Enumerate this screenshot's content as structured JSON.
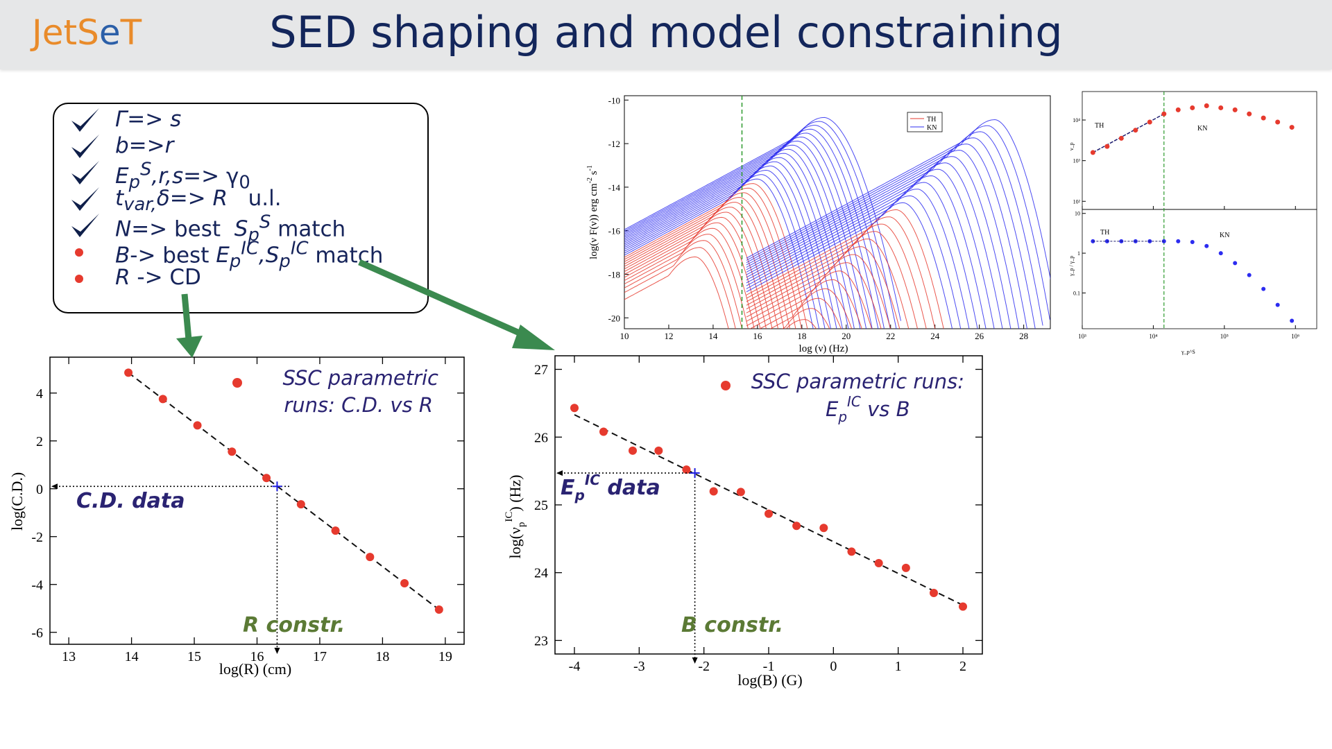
{
  "header": {
    "logo_part1": "Jet",
    "logo_part2": "S",
    "logo_part3": "e",
    "logo_part4": "T",
    "title": "SED shaping and model constraining"
  },
  "checklist": [
    {
      "kind": "check",
      "html": "<span class='it'>Γ=&gt; s</span>"
    },
    {
      "kind": "check",
      "html": "<span class='it'>b=&gt;r</span>"
    },
    {
      "kind": "check",
      "html": "<span class='it'>E<sub>p</sub><sup>S</sup>,r,s=&gt;</span> γ<sub>0</sub>"
    },
    {
      "kind": "check",
      "html": "<span class='it'>t<sub>var,</sub>δ=&gt; R</span>&nbsp;&nbsp; u.l."
    },
    {
      "kind": "check",
      "html": "<span class='it'>N</span>=&gt; best&nbsp; <span class='it'>S<sub>p</sub><sup>S</sup></span> match"
    },
    {
      "kind": "dot",
      "html": "<span class='it'>B</span>-&gt; best <span class='it'>E<sub>p</sub><sup>IC</sup>,S<sub>p</sub><sup>IC</sup></span> match"
    },
    {
      "kind": "dot",
      "html": "<span class='it'>R</span> -&gt; CD"
    }
  ],
  "colors": {
    "title": "#13265b",
    "point": "#e63a2e",
    "sync": "#e63a2e",
    "kn": "#2c2cf0",
    "arrow": "#3b8a4f",
    "ann_blue": "#2a2372",
    "ann_green": "#5b7a35",
    "vline": "#2c9a2c"
  },
  "chart_data": [
    {
      "id": "cd_vs_r",
      "type": "scatter",
      "xlabel": "log(R)      (cm)",
      "ylabel": "log(C.D.)",
      "xlim": [
        12.7,
        19.3
      ],
      "ylim": [
        -6.5,
        5.5
      ],
      "xticks": [
        13,
        14,
        15,
        16,
        17,
        18,
        19
      ],
      "yticks": [
        -6,
        -4,
        -2,
        0,
        2,
        4
      ],
      "x": [
        13.95,
        14.5,
        15.05,
        15.6,
        16.15,
        16.7,
        17.25,
        17.8,
        18.35,
        18.9
      ],
      "y": [
        4.85,
        3.75,
        2.65,
        1.55,
        0.45,
        -0.65,
        -1.75,
        -2.85,
        -3.95,
        -5.05
      ],
      "fit": [
        [
          13.95,
          4.85
        ],
        [
          18.9,
          -5.05
        ]
      ],
      "constraint": {
        "x": 16.32,
        "y": 0.1
      },
      "legend": "SSC parametric runs: C.D. vs R",
      "legend_line1": "SSC parametric",
      "legend_line2": "runs: C.D. vs R",
      "data_label": "C.D.  data",
      "constraint_label": "R constr."
    },
    {
      "id": "ep_vs_b",
      "type": "scatter",
      "xlabel": "log(B)      (G)",
      "ylabel": "log(ν_p^IC)   (Hz)",
      "ylabel_main": "log(ν",
      "ylabel_sub": "p",
      "ylabel_sup": "IC",
      "ylabel_tail": ")   (Hz)",
      "xlim": [
        -4.3,
        2.3
      ],
      "ylim": [
        22.8,
        27.2
      ],
      "xticks": [
        -4,
        -3,
        -2,
        -1,
        0,
        1,
        2
      ],
      "yticks": [
        23,
        24,
        25,
        26,
        27
      ],
      "x": [
        -4.0,
        -3.58,
        -3.16,
        -2.74,
        -2.32,
        -1.89,
        -1.47,
        -1.05,
        -0.63,
        -0.21,
        0.21,
        0.63,
        1.05,
        1.47,
        1.89,
        2.0
      ],
      "y": [
        26.43,
        26.08,
        25.8,
        25.8,
        25.52,
        25.2,
        25.19,
        24.87,
        24.69,
        24.66,
        24.31,
        24.14,
        24.07,
        23.7,
        23.5,
        23.5
      ],
      "x_used": [
        -4.0,
        -3.55,
        -3.1,
        -2.7,
        -2.27,
        -1.85,
        -1.43,
        -1.0,
        -0.57,
        -0.15,
        0.28,
        0.7,
        1.12,
        1.55,
        2.0
      ],
      "y_used": [
        26.43,
        26.08,
        25.8,
        25.8,
        25.52,
        25.2,
        25.19,
        24.87,
        24.69,
        24.66,
        24.31,
        24.14,
        24.07,
        23.7,
        23.5
      ],
      "fit": [
        [
          -4.0,
          26.33
        ],
        [
          2.0,
          23.52
        ]
      ],
      "constraint": {
        "x": -2.14,
        "y": 25.47
      },
      "legend_line1": "SSC parametric runs:",
      "legend_line2_a": "E",
      "legend_line2_sub": "p",
      "legend_line2_sup": "IC",
      "legend_line2_b": " vs B",
      "data_label_a": "E",
      "data_label_sub": "p",
      "data_label_sup": "IC",
      "data_label_b": " data",
      "constraint_label": "B constr."
    },
    {
      "id": "sed",
      "type": "line",
      "xlabel": "log (ν)  (Hz)",
      "ylabel": "log(ν F(ν))   erg cm⁻² s⁻¹",
      "ylabel_a": "log(ν F(ν))   erg cm",
      "ylabel_sup1": "-2",
      "ylabel_b": " s",
      "ylabel_sup2": "-1",
      "xlim": [
        10,
        29.2
      ],
      "ylim": [
        -20.5,
        -9.8
      ],
      "xticks": [
        10,
        12,
        14,
        16,
        18,
        20,
        22,
        24,
        26,
        28
      ],
      "yticks": [
        -10,
        -12,
        -14,
        -16,
        -18,
        -20
      ],
      "legend": [
        "TH",
        "KN"
      ],
      "vline_x": 15.3
    },
    {
      "id": "gamma_p",
      "type": "scatter",
      "top_labels": [
        "TH",
        "KN"
      ],
      "bottom_labels": [
        "TH",
        "KN"
      ],
      "xlabel": "γ_p^S",
      "xticks": [
        "10³",
        "10⁴",
        "10⁵",
        "10⁶"
      ],
      "top_yticks": [
        "10²",
        "10³",
        "10⁴"
      ],
      "bottom_yticks": [
        "0.1",
        "1",
        "10"
      ],
      "top_ylabel": "ν_p",
      "bottom_ylabel": "γ_p / γ_p",
      "top_y_log": [
        3.2,
        3.35,
        3.55,
        3.75,
        3.95,
        4.15,
        4.25,
        4.3,
        4.35,
        4.3,
        4.25,
        4.15,
        4.05,
        3.95,
        3.82
      ],
      "bottom_y_log": [
        0.3,
        0.3,
        0.3,
        0.3,
        0.3,
        0.3,
        0.3,
        0.28,
        0.18,
        0.0,
        -0.25,
        -0.55,
        -0.9,
        -1.3,
        -1.7
      ],
      "x_log": [
        3.15,
        3.35,
        3.55,
        3.75,
        3.95,
        4.15,
        4.35,
        4.55,
        4.75,
        4.95,
        5.15,
        5.35,
        5.55,
        5.75,
        5.95
      ],
      "vline_x_log": 4.15
    }
  ]
}
